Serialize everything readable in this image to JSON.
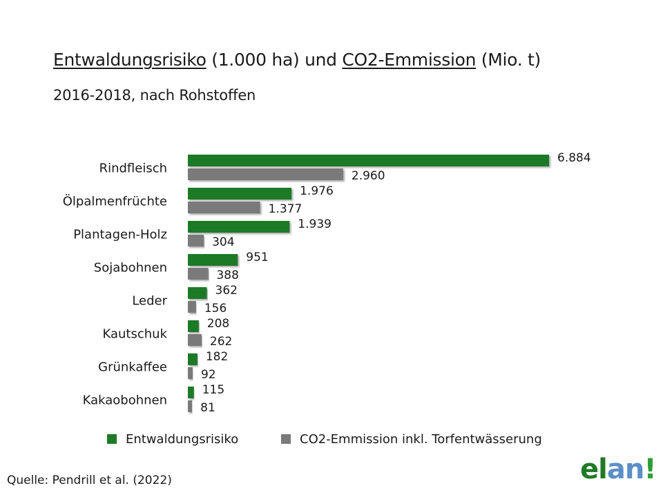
{
  "title": {
    "part1": "Entwaldungsrisiko",
    "part2": " (1.000 ha) und ",
    "part3": "CO2-Emmission",
    "part4": " (Mio. t)"
  },
  "subtitle": "2016-2018, nach Rohstoffen",
  "legend": {
    "deforestation": "Entwaldungsrisiko",
    "co2": "CO2-Emmission inkl. Torfentwässerung"
  },
  "source": "Quelle: Pendrill et al. (2022)",
  "logo": {
    "part1": "el",
    "part2": "an",
    "part3": "!"
  },
  "colors": {
    "deforestation": "#1e7a26",
    "co2": "#7a7a7a",
    "logo_green": "#1f7a26",
    "logo_blue": "#5b8fc7"
  },
  "chart_data": {
    "type": "bar",
    "orientation": "horizontal",
    "title": "Entwaldungsrisiko (1.000 ha) und CO2-Emmission (Mio. t)",
    "subtitle": "2016-2018, nach Rohstoffen",
    "categories": [
      "Rindfleisch",
      "Ölpalmenfrüchte",
      "Plantagen-Holz",
      "Sojabohnen",
      "Leder",
      "Kautschuk",
      "Grünkaffee",
      "Kakaobohnen"
    ],
    "series": [
      {
        "name": "Entwaldungsrisiko",
        "values": [
          6884,
          1976,
          1939,
          951,
          362,
          208,
          182,
          115
        ],
        "labels": [
          "6.884",
          "1.976",
          "1.939",
          "951",
          "362",
          "208",
          "182",
          "115"
        ]
      },
      {
        "name": "CO2-Emmission inkl. Torfentwässerung",
        "values": [
          2960,
          1377,
          304,
          388,
          156,
          262,
          92,
          81
        ],
        "labels": [
          "2.960",
          "1.377",
          "304",
          "388",
          "156",
          "262",
          "92",
          "81"
        ]
      }
    ],
    "xlim": [
      0,
      7000
    ],
    "grid": false,
    "legend_position": "bottom"
  }
}
